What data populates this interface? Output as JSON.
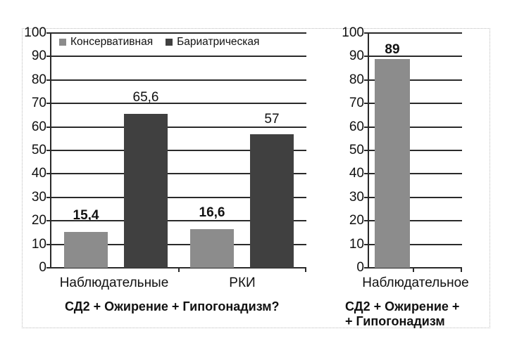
{
  "colors": {
    "conservative": "#8c8c8c",
    "bariatric": "#404040",
    "axis": "#2a2a2a"
  },
  "legend": {
    "items": [
      {
        "label": "Консервативная"
      },
      {
        "label": "Бариатрическая"
      }
    ]
  },
  "y_ticks": [
    "100",
    "90",
    "80",
    "70",
    "60",
    "50",
    "40",
    "30",
    "20",
    "10",
    "0"
  ],
  "left": {
    "categories": [
      "Наблюдательные",
      "РКИ"
    ],
    "labels": {
      "c1": "15,4",
      "b1": "65,6",
      "c2": "16,6",
      "b2": "57"
    },
    "title": "СД2 + Ожирение + Гипогонадизм?"
  },
  "right": {
    "category": "Наблюдательное",
    "label": "89",
    "title_line1": "СД2 + Ожирение +",
    "title_line2": "+ Гипогонадизм"
  },
  "chart_data": [
    {
      "type": "bar",
      "title": "СД2 + Ожирение + Гипогонадизм?",
      "categories": [
        "Наблюдательные",
        "РКИ"
      ],
      "series": [
        {
          "name": "Консервативная",
          "values": [
            15.4,
            16.6
          ]
        },
        {
          "name": "Бариатрическая",
          "values": [
            65.6,
            57
          ]
        }
      ],
      "ylim": [
        0,
        100
      ],
      "yticks": [
        0,
        10,
        20,
        30,
        40,
        50,
        60,
        70,
        80,
        90,
        100
      ],
      "grid": true,
      "legend_position": "top"
    },
    {
      "type": "bar",
      "title": "СД2 + Ожирение + + Гипогонадизм",
      "categories": [
        "Наблюдательное"
      ],
      "series": [
        {
          "name": "Консервативная",
          "values": [
            89
          ]
        }
      ],
      "ylim": [
        0,
        100
      ],
      "yticks": [
        0,
        10,
        20,
        30,
        40,
        50,
        60,
        70,
        80,
        90,
        100
      ],
      "grid": true
    }
  ]
}
